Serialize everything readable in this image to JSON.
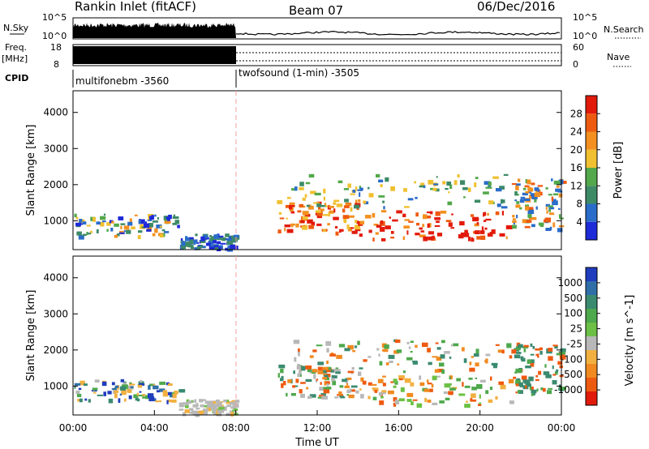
{
  "header": {
    "station": "Rankin Inlet (fitACF)",
    "beam": "Beam 07",
    "date": "06/Dec/2016"
  },
  "status_panels": {
    "nsky_label": "N.Sky",
    "nsky_ticks": [
      "10^5",
      "10^0"
    ],
    "nsearch_label": "N.Search",
    "nsearch_ticks": [
      "10^5",
      "10^0"
    ],
    "freq_label": "Freq.",
    "freq_unit": "[MHz]",
    "freq_ticks": [
      "18",
      "8"
    ],
    "nave_label": "Nave",
    "nave_ticks": [
      "60",
      "0"
    ],
    "cpid_label": "CPID",
    "cpid_segments": [
      {
        "name": "multifonebm -3560",
        "start_hour": 0,
        "end_hour": 8
      },
      {
        "name": "twofsound (1-min) -3505",
        "start_hour": 8,
        "end_hour": 24
      }
    ]
  },
  "chart_data": [
    {
      "type": "heatmap",
      "name": "power",
      "ylabel": "Slant Range [km]",
      "yticks": [
        "1000",
        "2000",
        "3000",
        "4000"
      ],
      "ylim": [
        200,
        4600
      ],
      "xlim": [
        0,
        24
      ],
      "colorbar": {
        "label": "Power [dB]",
        "ticks": [
          "4",
          "8",
          "12",
          "16",
          "20",
          "24",
          "28"
        ],
        "range": [
          0,
          32
        ],
        "colors": [
          "#1e2bd8",
          "#2a6cc9",
          "#3d8a66",
          "#52a84a",
          "#f0c030",
          "#f39020",
          "#ee5a10",
          "#e21a0a"
        ]
      }
    },
    {
      "type": "heatmap",
      "name": "velocity",
      "ylabel": "Slant Range [km]",
      "yticks": [
        "1000",
        "2000",
        "3000",
        "4000"
      ],
      "ylim": [
        200,
        4600
      ],
      "xlim": [
        0,
        24
      ],
      "xticks": [
        "00:00",
        "04:00",
        "08:00",
        "12:00",
        "16:00",
        "20:00",
        "00:00"
      ],
      "xlabel": "Time UT",
      "colorbar": {
        "label": "Velocity [m s^-1]",
        "ticks": [
          "1000",
          "500",
          "100",
          "25",
          "-25",
          "-100",
          "-500",
          "-1000"
        ],
        "colors": [
          "#1f3dbd",
          "#2e6fa8",
          "#3a8a70",
          "#4ea84c",
          "#6cc046",
          "#b8b8b8",
          "#f2b040",
          "#f08a20",
          "#ee5a10",
          "#e21a0a"
        ]
      }
    }
  ]
}
